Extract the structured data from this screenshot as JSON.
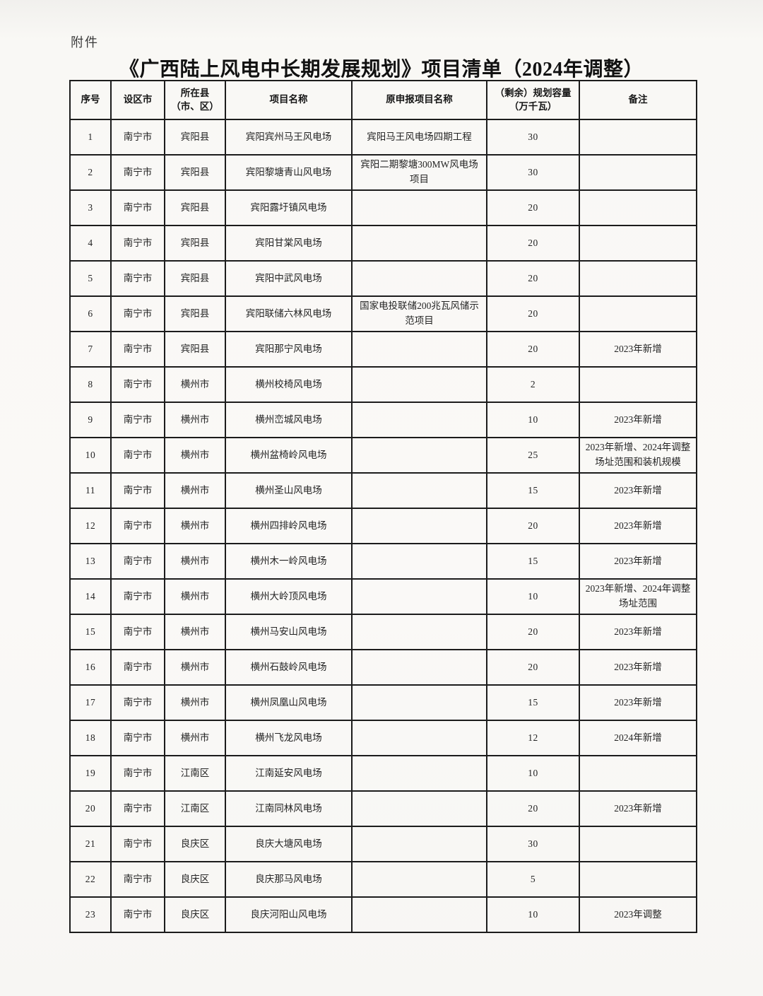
{
  "page": {
    "attachment_label": "附件",
    "title": "《广西陆上风电中长期发展规划》项目清单（2024年调整）",
    "text_color": "#1f1f1f",
    "border_color": "#1c1c1c",
    "background_color": "#f9f8f5"
  },
  "table": {
    "columns": [
      "序号",
      "设区市",
      "所在县\n（市、区）",
      "项目名称",
      "原申报项目名称",
      "（剩余）规划容量\n（万千瓦）",
      "备注"
    ],
    "rows": [
      {
        "no": "1",
        "city": "南宁市",
        "county": "宾阳县",
        "project": "宾阳宾州马王风电场",
        "original": "宾阳马王风电场四期工程",
        "capacity": "30",
        "remark": ""
      },
      {
        "no": "2",
        "city": "南宁市",
        "county": "宾阳县",
        "project": "宾阳黎塘青山风电场",
        "original": "宾阳二期黎塘300MW风电场项目",
        "capacity": "30",
        "remark": ""
      },
      {
        "no": "3",
        "city": "南宁市",
        "county": "宾阳县",
        "project": "宾阳露圩镇风电场",
        "original": "",
        "capacity": "20",
        "remark": ""
      },
      {
        "no": "4",
        "city": "南宁市",
        "county": "宾阳县",
        "project": "宾阳甘棠风电场",
        "original": "",
        "capacity": "20",
        "remark": ""
      },
      {
        "no": "5",
        "city": "南宁市",
        "county": "宾阳县",
        "project": "宾阳中武风电场",
        "original": "",
        "capacity": "20",
        "remark": ""
      },
      {
        "no": "6",
        "city": "南宁市",
        "county": "宾阳县",
        "project": "宾阳联储六林风电场",
        "original": "国家电投联储200兆瓦风储示范项目",
        "capacity": "20",
        "remark": ""
      },
      {
        "no": "7",
        "city": "南宁市",
        "county": "宾阳县",
        "project": "宾阳那宁风电场",
        "original": "",
        "capacity": "20",
        "remark": "2023年新增"
      },
      {
        "no": "8",
        "city": "南宁市",
        "county": "横州市",
        "project": "横州校椅风电场",
        "original": "",
        "capacity": "2",
        "remark": ""
      },
      {
        "no": "9",
        "city": "南宁市",
        "county": "横州市",
        "project": "横州峦城风电场",
        "original": "",
        "capacity": "10",
        "remark": "2023年新增"
      },
      {
        "no": "10",
        "city": "南宁市",
        "county": "横州市",
        "project": "横州盆椅岭风电场",
        "original": "",
        "capacity": "25",
        "remark": "2023年新增、2024年调整场址范围和装机规模"
      },
      {
        "no": "11",
        "city": "南宁市",
        "county": "横州市",
        "project": "横州圣山风电场",
        "original": "",
        "capacity": "15",
        "remark": "2023年新增"
      },
      {
        "no": "12",
        "city": "南宁市",
        "county": "横州市",
        "project": "横州四排岭风电场",
        "original": "",
        "capacity": "20",
        "remark": "2023年新增"
      },
      {
        "no": "13",
        "city": "南宁市",
        "county": "横州市",
        "project": "横州木一岭风电场",
        "original": "",
        "capacity": "15",
        "remark": "2023年新增"
      },
      {
        "no": "14",
        "city": "南宁市",
        "county": "横州市",
        "project": "横州大岭顶风电场",
        "original": "",
        "capacity": "10",
        "remark": "2023年新增、2024年调整场址范围"
      },
      {
        "no": "15",
        "city": "南宁市",
        "county": "横州市",
        "project": "横州马安山风电场",
        "original": "",
        "capacity": "20",
        "remark": "2023年新增"
      },
      {
        "no": "16",
        "city": "南宁市",
        "county": "横州市",
        "project": "横州石鼓岭风电场",
        "original": "",
        "capacity": "20",
        "remark": "2023年新增"
      },
      {
        "no": "17",
        "city": "南宁市",
        "county": "横州市",
        "project": "横州凤凰山风电场",
        "original": "",
        "capacity": "15",
        "remark": "2023年新增"
      },
      {
        "no": "18",
        "city": "南宁市",
        "county": "横州市",
        "project": "横州飞龙风电场",
        "original": "",
        "capacity": "12",
        "remark": "2024年新增"
      },
      {
        "no": "19",
        "city": "南宁市",
        "county": "江南区",
        "project": "江南延安风电场",
        "original": "",
        "capacity": "10",
        "remark": ""
      },
      {
        "no": "20",
        "city": "南宁市",
        "county": "江南区",
        "project": "江南同林风电场",
        "original": "",
        "capacity": "20",
        "remark": "2023年新增"
      },
      {
        "no": "21",
        "city": "南宁市",
        "county": "良庆区",
        "project": "良庆大塘风电场",
        "original": "",
        "capacity": "30",
        "remark": ""
      },
      {
        "no": "22",
        "city": "南宁市",
        "county": "良庆区",
        "project": "良庆那马风电场",
        "original": "",
        "capacity": "5",
        "remark": ""
      },
      {
        "no": "23",
        "city": "南宁市",
        "county": "良庆区",
        "project": "良庆河阳山风电场",
        "original": "",
        "capacity": "10",
        "remark": "2023年调整"
      }
    ]
  }
}
